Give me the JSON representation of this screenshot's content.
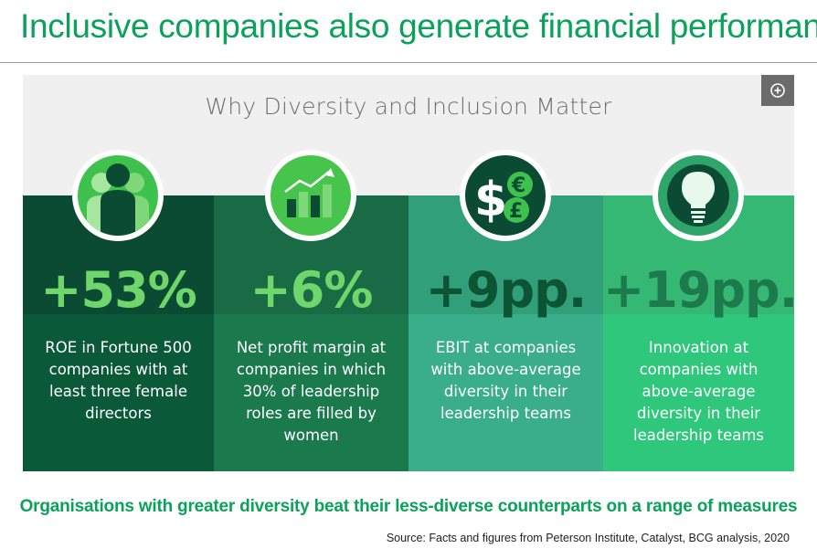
{
  "page": {
    "title": "Inclusive companies also generate financial performance",
    "subtitle": "Organisations with greater diversity beat their less-diverse counterparts on a range of measures",
    "source": "Source: Facts and figures from Peterson Institute, Catalyst, BCG analysis, 2020"
  },
  "infographic": {
    "heading": "Why Diversity and Inclusion Matter",
    "zoom_icon": "zoom-plus-icon",
    "stats": [
      {
        "value": "+53%",
        "description": "ROE in Fortune 500 companies with at least three female directors",
        "icon": "people-icon",
        "bg_top": "#0c4b33",
        "bg_bottom": "#0a5a3a",
        "value_color": "#6fd66b"
      },
      {
        "value": "+6%",
        "description": "Net profit margin at companies in which 30% of leadership roles are filled by women",
        "icon": "growth-chart-icon",
        "bg_top": "#196b45",
        "bg_bottom": "#1a7a4e",
        "value_color": "#6fd66b"
      },
      {
        "value": "+9pp.",
        "description": "EBIT at companies with above-average diversity in their leadership teams",
        "icon": "currency-icon",
        "bg_top": "#31a07a",
        "bg_bottom": "#3aae88",
        "value_color": "#0d5435"
      },
      {
        "value": "+19pp.",
        "description": "Innovation at companies with above-average diversity in their leadership teams",
        "icon": "lightbulb-icon",
        "bg_top": "#35b873",
        "bg_bottom": "#2ec77c",
        "value_color": "#1d7a4c"
      }
    ]
  }
}
